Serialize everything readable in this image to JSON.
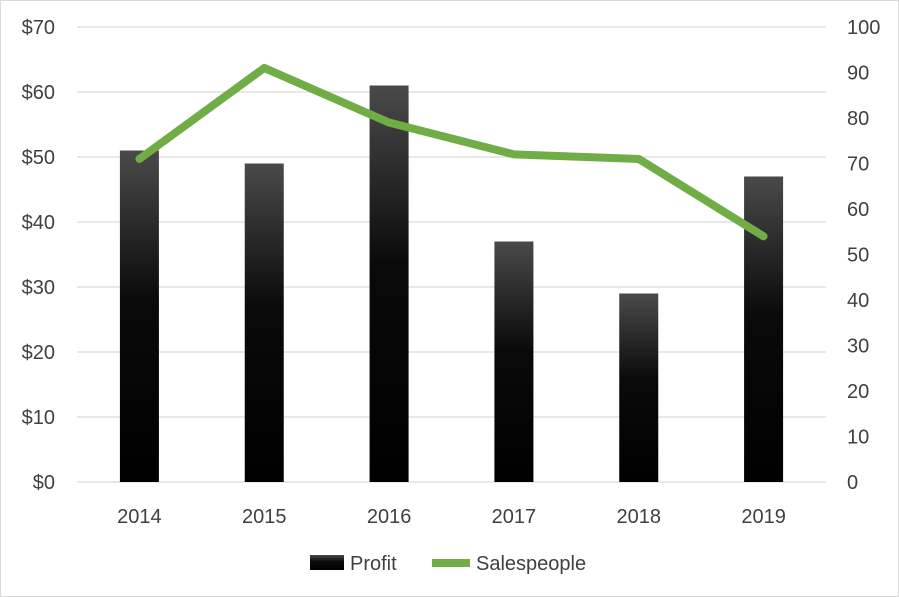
{
  "chart_data": {
    "type": "bar",
    "categories": [
      "2014",
      "2015",
      "2016",
      "2017",
      "2018",
      "2019"
    ],
    "series": [
      {
        "name": "Profit",
        "type": "bar",
        "axis": "left",
        "values": [
          51,
          49,
          61,
          37,
          29,
          47
        ],
        "color": "#000000"
      },
      {
        "name": "Salespeople",
        "type": "line",
        "axis": "right",
        "values": [
          71,
          91,
          79,
          72,
          71,
          54
        ],
        "color": "#70ad47"
      }
    ],
    "y_left": {
      "ylim": [
        0,
        70
      ],
      "ticks": [
        0,
        10,
        20,
        30,
        40,
        50,
        60,
        70
      ],
      "tick_labels": [
        "$0",
        "$10",
        "$20",
        "$30",
        "$40",
        "$50",
        "$60",
        "$70"
      ]
    },
    "y_right": {
      "ylim": [
        0,
        100
      ],
      "ticks": [
        0,
        10,
        20,
        30,
        40,
        50,
        60,
        70,
        80,
        90,
        100
      ],
      "tick_labels": [
        "0",
        "10",
        "20",
        "30",
        "40",
        "50",
        "60",
        "70",
        "80",
        "90",
        "100"
      ]
    },
    "title": "",
    "xlabel": "",
    "ylabel": "",
    "grid": true,
    "legend": "bottom",
    "gridline_color": "#d9d9d9"
  }
}
